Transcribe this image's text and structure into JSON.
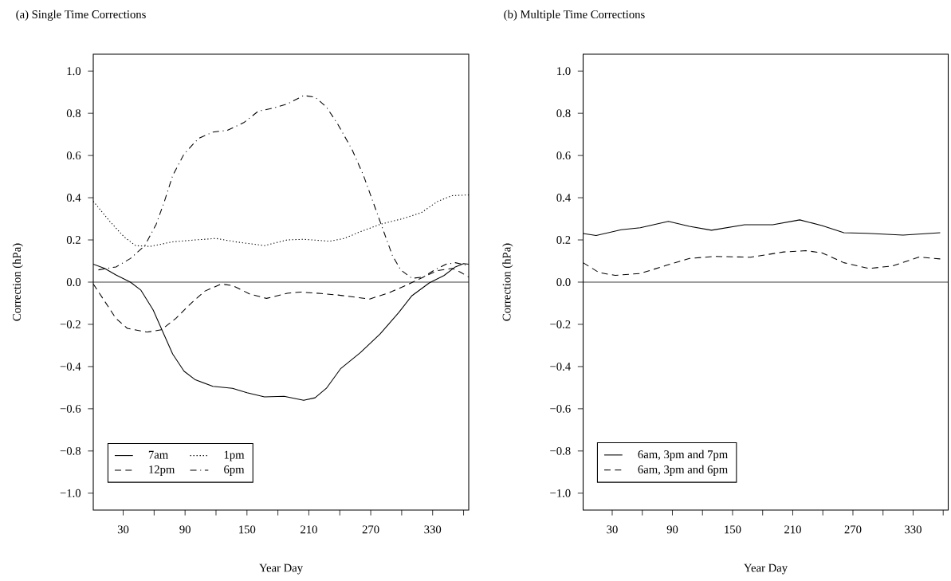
{
  "chart_data": [
    {
      "type": "line",
      "title": "(a) Single Time Corrections",
      "xlabel": "Year Day",
      "ylabel": "Correction (hPa)",
      "xlim": [
        1,
        365
      ],
      "ylim": [
        -1.08,
        1.08
      ],
      "xticks": [
        30,
        {
          "value": 60,
          "label": null
        },
        90,
        {
          "value": 120,
          "label": null
        },
        150,
        {
          "value": 180,
          "label": null
        },
        210,
        {
          "value": 240,
          "label": null
        },
        270,
        {
          "value": 300,
          "label": null
        },
        330,
        {
          "value": 360,
          "label": null
        }
      ],
      "yticks": [
        {
          "value": -1.0,
          "label": "−1.0"
        },
        {
          "value": -0.8,
          "label": "−0.8"
        },
        {
          "value": -0.6,
          "label": "−0.6"
        },
        {
          "value": -0.4,
          "label": "−0.4"
        },
        {
          "value": -0.2,
          "label": "−0.2"
        },
        {
          "value": 0.0,
          "label": "0.0"
        },
        {
          "value": 0.2,
          "label": "0.2"
        },
        {
          "value": 0.4,
          "label": "0.4"
        },
        {
          "value": 0.6,
          "label": "0.6"
        },
        {
          "value": 0.8,
          "label": "0.8"
        },
        {
          "value": 1.0,
          "label": "1.0"
        }
      ],
      "grid": false,
      "legend": "bottom left",
      "ref_lines": [
        {
          "axis": "y",
          "value": 0,
          "color": "#000000"
        }
      ],
      "series": [
        {
          "name": "7am",
          "color": "#000000",
          "line_style": "solid",
          "x": [
            1,
            12,
            23,
            37,
            47,
            59,
            70,
            78,
            89,
            100,
            117,
            136,
            150,
            167,
            186,
            205,
            216,
            227,
            241,
            260,
            279,
            297,
            310,
            327,
            341,
            352,
            360,
            365
          ],
          "values": [
            0.085,
            0.065,
            0.034,
            0.0,
            -0.037,
            -0.131,
            -0.253,
            -0.341,
            -0.422,
            -0.463,
            -0.494,
            -0.503,
            -0.524,
            -0.544,
            -0.541,
            -0.56,
            -0.548,
            -0.503,
            -0.409,
            -0.334,
            -0.246,
            -0.145,
            -0.064,
            -0.003,
            0.031,
            0.072,
            0.088,
            0.085
          ]
        },
        {
          "name": "12pm",
          "color": "#000000",
          "line_style": "dashed",
          "x": [
            1,
            12,
            23,
            34,
            53,
            67,
            81,
            95,
            109,
            125,
            136,
            153,
            169,
            189,
            202,
            222,
            238,
            269,
            288,
            307,
            321,
            335,
            349,
            357,
            365
          ],
          "values": [
            -0.009,
            -0.09,
            -0.172,
            -0.219,
            -0.237,
            -0.226,
            -0.172,
            -0.104,
            -0.043,
            -0.009,
            -0.016,
            -0.057,
            -0.077,
            -0.053,
            -0.047,
            -0.054,
            -0.061,
            -0.08,
            -0.05,
            -0.009,
            0.024,
            0.055,
            0.065,
            0.047,
            0.024
          ]
        },
        {
          "name": "1pm",
          "color": "#000000",
          "line_style": "dotted",
          "x": [
            1,
            17,
            31,
            42,
            56,
            78,
            100,
            120,
            139,
            167,
            189,
            205,
            230,
            244,
            261,
            280,
            302,
            319,
            335,
            349,
            365
          ],
          "values": [
            0.383,
            0.288,
            0.214,
            0.173,
            0.169,
            0.191,
            0.2,
            0.207,
            0.191,
            0.173,
            0.2,
            0.203,
            0.194,
            0.207,
            0.241,
            0.275,
            0.302,
            0.329,
            0.383,
            0.41,
            0.413
          ]
        },
        {
          "name": "6pm",
          "color": "#000000",
          "line_style": "dashdot",
          "x": [
            6,
            23,
            37,
            51,
            62,
            70,
            78,
            89,
            103,
            117,
            131,
            147,
            161,
            175,
            189,
            205,
            216,
            227,
            238,
            252,
            263,
            274,
            283,
            291,
            299,
            310,
            321,
            332,
            343,
            352,
            365
          ],
          "values": [
            0.058,
            0.072,
            0.112,
            0.173,
            0.274,
            0.383,
            0.505,
            0.607,
            0.681,
            0.711,
            0.719,
            0.756,
            0.81,
            0.824,
            0.844,
            0.884,
            0.877,
            0.83,
            0.749,
            0.627,
            0.505,
            0.356,
            0.234,
            0.126,
            0.058,
            0.018,
            0.024,
            0.058,
            0.085,
            0.092,
            0.078
          ]
        }
      ]
    },
    {
      "type": "line",
      "title": "(b) Multiple Time Corrections",
      "xlabel": "Year Day",
      "ylabel": "Correction (hPa)",
      "xlim": [
        1,
        365
      ],
      "ylim": [
        -1.08,
        1.08
      ],
      "xticks": [
        30,
        {
          "value": 60,
          "label": null
        },
        90,
        {
          "value": 120,
          "label": null
        },
        150,
        {
          "value": 180,
          "label": null
        },
        210,
        {
          "value": 240,
          "label": null
        },
        270,
        {
          "value": 300,
          "label": null
        },
        330,
        {
          "value": 360,
          "label": null
        }
      ],
      "yticks": [
        {
          "value": -1.0,
          "label": "−1.0"
        },
        {
          "value": -0.8,
          "label": "−0.8"
        },
        {
          "value": -0.6,
          "label": "−0.6"
        },
        {
          "value": -0.4,
          "label": "−0.4"
        },
        {
          "value": -0.2,
          "label": "−0.2"
        },
        {
          "value": 0.0,
          "label": "0.0"
        },
        {
          "value": 0.2,
          "label": "0.2"
        },
        {
          "value": 0.4,
          "label": "0.4"
        },
        {
          "value": 0.6,
          "label": "0.6"
        },
        {
          "value": 0.8,
          "label": "0.8"
        },
        {
          "value": 1.0,
          "label": "1.0"
        }
      ],
      "grid": false,
      "legend": "bottom left",
      "ref_lines": [
        {
          "axis": "y",
          "value": 0,
          "color": "#000000"
        }
      ],
      "series": [
        {
          "name": "6am, 3pm and 7pm",
          "color": "#000000",
          "line_style": "solid",
          "x": [
            1,
            14,
            39,
            58,
            86,
            107,
            129,
            162,
            190,
            217,
            239,
            261,
            284,
            320,
            357
          ],
          "values": [
            0.23,
            0.221,
            0.248,
            0.258,
            0.288,
            0.264,
            0.246,
            0.272,
            0.272,
            0.295,
            0.268,
            0.234,
            0.231,
            0.223,
            0.234
          ]
        },
        {
          "name": "6am, 3pm and 6pm",
          "color": "#000000",
          "line_style": "dashed",
          "x": [
            1,
            17,
            33,
            58,
            83,
            107,
            132,
            168,
            201,
            223,
            239,
            261,
            286,
            309,
            336,
            357
          ],
          "values": [
            0.092,
            0.045,
            0.032,
            0.041,
            0.078,
            0.112,
            0.122,
            0.118,
            0.143,
            0.149,
            0.139,
            0.092,
            0.065,
            0.076,
            0.119,
            0.11
          ]
        }
      ]
    }
  ]
}
